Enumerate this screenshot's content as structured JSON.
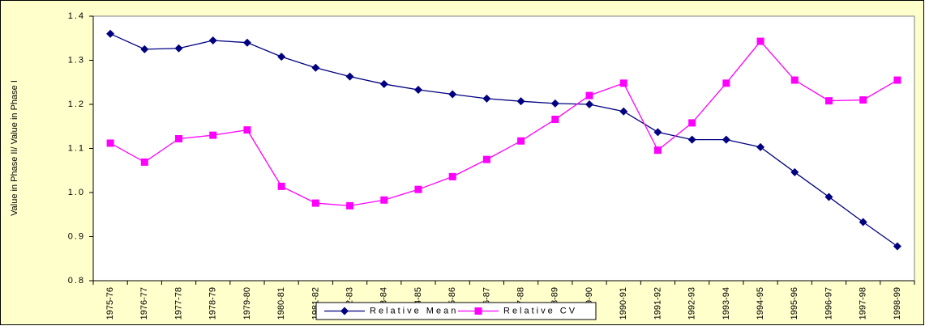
{
  "chart_data": {
    "type": "line",
    "y_label": "Value in Phase II/ Value in Phase I",
    "categories": [
      "1975-76",
      "1976-77",
      "1977-78",
      "1978-79",
      "1979-80",
      "1980-81",
      "1981-82",
      "1982-83",
      "1983-84",
      "1984-85",
      "1985-86",
      "1986-87",
      "1987-88",
      "1988-89",
      "1989-90",
      "1990-91",
      "1991-92",
      "1992-93",
      "1993-94",
      "1994-95",
      "1995-96",
      "1996-97",
      "1997-98",
      "1998-99"
    ],
    "series": [
      {
        "name": "Relative Mean",
        "color": "#000080",
        "marker": "diamond",
        "values": [
          1.36,
          1.325,
          1.327,
          1.345,
          1.34,
          1.308,
          1.283,
          1.263,
          1.246,
          1.233,
          1.223,
          1.213,
          1.207,
          1.202,
          1.2,
          1.184,
          1.137,
          1.12,
          1.12,
          1.103,
          1.046,
          0.99,
          0.933,
          0.878
        ]
      },
      {
        "name": "Relative CV",
        "color": "#ff00ff",
        "marker": "square",
        "values": [
          1.112,
          1.069,
          1.122,
          1.13,
          1.142,
          1.014,
          0.976,
          0.97,
          0.983,
          1.007,
          1.036,
          1.075,
          1.117,
          1.166,
          1.22,
          1.248,
          1.096,
          1.158,
          1.248,
          1.343,
          1.255,
          1.208,
          1.21,
          1.255
        ]
      }
    ],
    "ylim": [
      0.8,
      1.4
    ],
    "yticks": [
      0.8,
      0.9,
      {
        "value": 1,
        "label": "1.0"
      },
      1.1,
      1.2,
      1.3,
      1.4
    ],
    "grid": false,
    "legend": "bottom"
  }
}
